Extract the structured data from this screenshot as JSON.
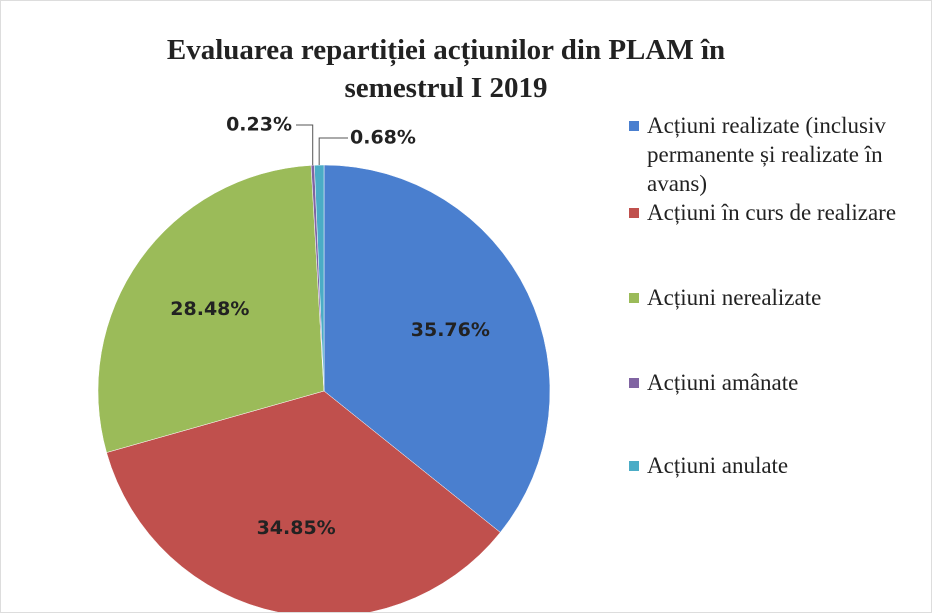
{
  "chart_data": {
    "type": "pie",
    "title": "Evaluarea repartiției acțiunilor din PLAM în semestrul I 2019",
    "categories": [
      "Acțiuni realizate (inclusiv permanente și realizate în avans)",
      "Acțiuni în curs de realizare",
      "Acțiuni nerealizate",
      "Acțiuni amânate",
      "Acțiuni anulate"
    ],
    "values": [
      35.76,
      34.85,
      28.48,
      0.23,
      0.68
    ],
    "value_labels": [
      "35.76%",
      "34.85%",
      "28.48%",
      "0.23%",
      "0.68%"
    ],
    "colors": [
      "#4a7fcf",
      "#c0504d",
      "#9bbb59",
      "#8064a2",
      "#4bacc6"
    ],
    "legend": "right"
  }
}
